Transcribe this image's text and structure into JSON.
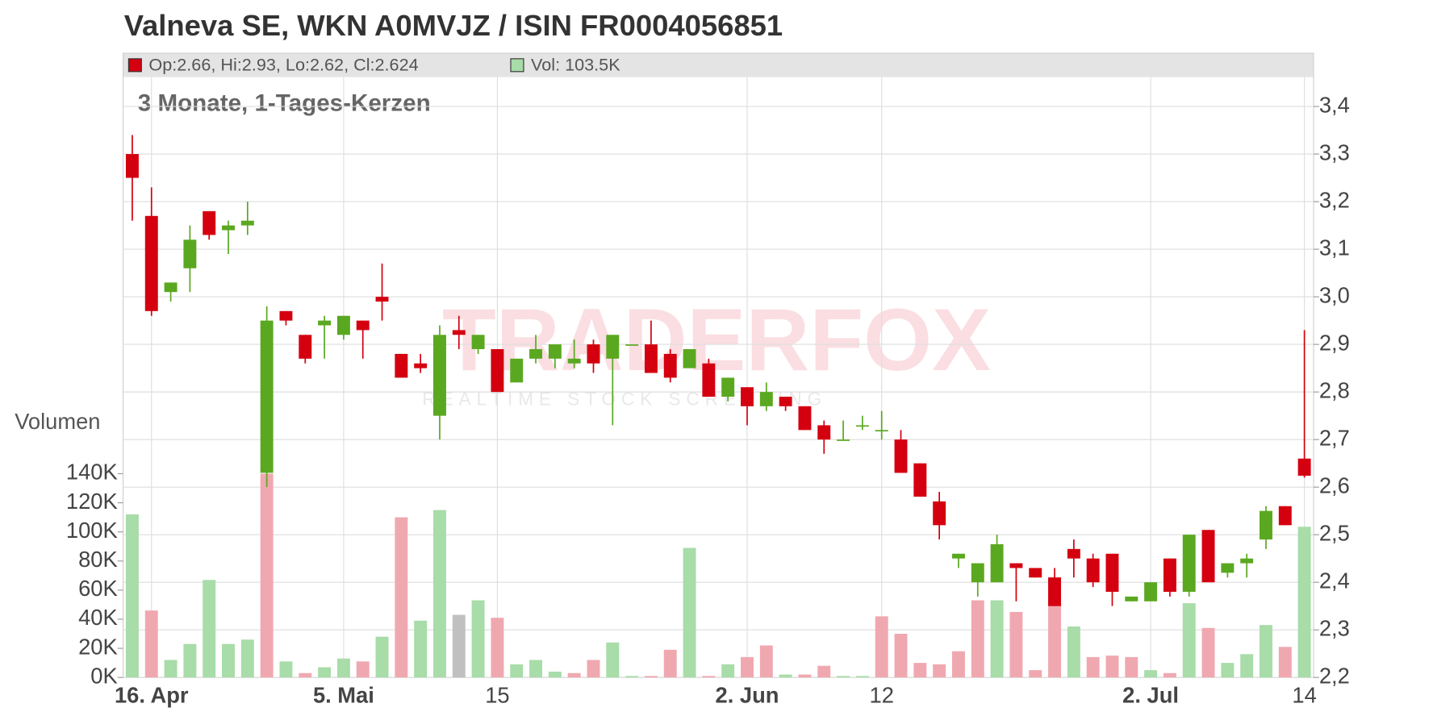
{
  "chart_data": {
    "type": "candlestick",
    "title": "Valneva SE, WKN A0MVJZ / ISIN FR0004056851",
    "subtitle": "3 Monate, 1-Tages-Kerzen",
    "legend": {
      "candle": "Op:2.66, Hi:2.93, Lo:2.62, Cl:2.624",
      "volume": "Vol: 103.5K"
    },
    "volume_axis_label": "Volumen",
    "watermark": {
      "brand": "TRADERFOX",
      "tagline": "REALTIME STOCK SCREENING"
    },
    "categories": [
      null,
      "16. Apr",
      null,
      null,
      null,
      null,
      null,
      null,
      null,
      null,
      null,
      "5. Mai",
      null,
      null,
      null,
      null,
      null,
      null,
      null,
      "15",
      null,
      null,
      null,
      null,
      null,
      null,
      null,
      null,
      null,
      null,
      null,
      null,
      "2. Jun",
      null,
      null,
      null,
      null,
      null,
      null,
      "12",
      null,
      null,
      null,
      null,
      null,
      null,
      null,
      null,
      null,
      null,
      null,
      null,
      null,
      "2. Jul",
      null,
      null,
      null,
      null,
      null,
      null,
      null,
      "14"
    ],
    "open": [
      3.3,
      3.17,
      3.01,
      3.06,
      3.18,
      3.14,
      3.15,
      2.63,
      2.97,
      2.92,
      2.94,
      2.92,
      2.95,
      3.0,
      2.88,
      2.86,
      2.75,
      2.93,
      2.89,
      2.89,
      2.82,
      2.87,
      2.87,
      2.86,
      2.9,
      2.87,
      2.9,
      2.9,
      2.88,
      2.85,
      2.86,
      2.79,
      2.81,
      2.77,
      2.79,
      2.77,
      2.73,
      2.7,
      2.73,
      2.72,
      2.7,
      2.65,
      2.57,
      2.45,
      2.4,
      2.4,
      2.44,
      2.43,
      2.41,
      2.47,
      2.45,
      2.46,
      2.36,
      2.36,
      2.45,
      2.38,
      2.51,
      2.42,
      2.44,
      2.49,
      2.56,
      2.66
    ],
    "high": [
      3.34,
      3.23,
      3.03,
      3.15,
      3.18,
      3.16,
      3.2,
      2.98,
      2.97,
      2.92,
      2.96,
      2.96,
      2.95,
      3.07,
      2.88,
      2.88,
      2.94,
      2.96,
      2.92,
      2.89,
      2.87,
      2.92,
      2.9,
      2.91,
      2.91,
      2.92,
      2.9,
      2.95,
      2.89,
      2.89,
      2.87,
      2.83,
      2.81,
      2.82,
      2.79,
      2.77,
      2.74,
      2.74,
      2.75,
      2.76,
      2.72,
      2.65,
      2.59,
      2.46,
      2.44,
      2.5,
      2.44,
      2.43,
      2.43,
      2.49,
      2.46,
      2.46,
      2.37,
      2.4,
      2.45,
      2.5,
      2.51,
      2.44,
      2.46,
      2.56,
      2.56,
      2.93
    ],
    "low": [
      3.16,
      2.96,
      2.99,
      3.01,
      3.12,
      3.09,
      3.13,
      2.6,
      2.94,
      2.86,
      2.87,
      2.91,
      2.87,
      2.95,
      2.83,
      2.84,
      2.7,
      2.89,
      2.88,
      2.8,
      2.82,
      2.86,
      2.85,
      2.85,
      2.84,
      2.73,
      2.9,
      2.84,
      2.82,
      2.85,
      2.79,
      2.78,
      2.73,
      2.76,
      2.76,
      2.72,
      2.67,
      2.7,
      2.72,
      2.7,
      2.63,
      2.58,
      2.49,
      2.43,
      2.37,
      2.4,
      2.36,
      2.41,
      2.35,
      2.41,
      2.39,
      2.35,
      2.36,
      2.36,
      2.37,
      2.37,
      2.4,
      2.41,
      2.41,
      2.47,
      2.52,
      2.62
    ],
    "close": [
      3.25,
      2.97,
      3.03,
      3.12,
      3.13,
      3.15,
      3.16,
      2.95,
      2.95,
      2.87,
      2.95,
      2.96,
      2.93,
      2.99,
      2.83,
      2.85,
      2.92,
      2.92,
      2.92,
      2.8,
      2.87,
      2.89,
      2.9,
      2.87,
      2.86,
      2.92,
      2.9,
      2.84,
      2.83,
      2.89,
      2.79,
      2.83,
      2.77,
      2.8,
      2.77,
      2.72,
      2.7,
      2.7,
      2.73,
      2.72,
      2.63,
      2.58,
      2.52,
      2.46,
      2.44,
      2.48,
      2.43,
      2.41,
      2.35,
      2.45,
      2.4,
      2.38,
      2.37,
      2.4,
      2.38,
      2.5,
      2.4,
      2.44,
      2.45,
      2.55,
      2.52,
      2.624
    ],
    "volume": [
      112000,
      46000,
      12000,
      23000,
      67000,
      23000,
      26000,
      140000,
      11000,
      3000,
      7000,
      13000,
      11000,
      28000,
      110000,
      39000,
      115000,
      43000,
      53000,
      41000,
      9000,
      12000,
      4000,
      3000,
      12000,
      24000,
      1000,
      1000,
      19000,
      89000,
      1000,
      9000,
      14000,
      22000,
      2000,
      2000,
      8000,
      1000,
      1000,
      42000,
      30000,
      10000,
      9000,
      18000,
      53000,
      53000,
      45000,
      5000,
      69000,
      35000,
      14000,
      15000,
      14000,
      5000,
      3000,
      51000,
      34000,
      10000,
      16000,
      36000,
      21000,
      103500
    ],
    "volume_colors": [
      "#a8dca8",
      "#f0a8b0",
      "#a8dca8",
      "#a8dca8",
      "#a8dca8",
      "#a8dca8",
      "#a8dca8",
      "#f0a8b0",
      "#a8dca8",
      "#f0a8b0",
      "#a8dca8",
      "#a8dca8",
      "#f0a8b0",
      "#a8dca8",
      "#f0a8b0",
      "#a8dca8",
      "#a8dca8",
      "#c0c0c0",
      "#a8dca8",
      "#f0a8b0",
      "#a8dca8",
      "#a8dca8",
      "#a8dca8",
      "#f0a8b0",
      "#f0a8b0",
      "#a8dca8",
      "#a8dca8",
      "#f0a8b0",
      "#f0a8b0",
      "#a8dca8",
      "#f0a8b0",
      "#a8dca8",
      "#f0a8b0",
      "#f0a8b0",
      "#a8dca8",
      "#f0a8b0",
      "#f0a8b0",
      "#a8dca8",
      "#a8dca8",
      "#f0a8b0",
      "#f0a8b0",
      "#f0a8b0",
      "#f0a8b0",
      "#f0a8b0",
      "#f0a8b0",
      "#a8dca8",
      "#f0a8b0",
      "#f0a8b0",
      "#f0a8b0",
      "#a8dca8",
      "#f0a8b0",
      "#f0a8b0",
      "#f0a8b0",
      "#a8dca8",
      "#f0a8b0",
      "#a8dca8",
      "#f0a8b0",
      "#a8dca8",
      "#a8dca8",
      "#a8dca8",
      "#f0a8b0",
      "#a8dca8"
    ],
    "up_color": "#5aa820",
    "down_color": "#d40010",
    "ylim": [
      2.2,
      3.4
    ],
    "yticks": [
      {
        "value": 2.2,
        "label": "2,2"
      },
      {
        "value": 2.3,
        "label": "2,3"
      },
      {
        "value": 2.4,
        "label": "2,4"
      },
      {
        "value": 2.5,
        "label": "2,5"
      },
      {
        "value": 2.6,
        "label": "2,6"
      },
      {
        "value": 2.7,
        "label": "2,7"
      },
      {
        "value": 2.8,
        "label": "2,8"
      },
      {
        "value": 2.9,
        "label": "2,9"
      },
      {
        "value": 3.0,
        "label": "3,0"
      },
      {
        "value": 3.1,
        "label": "3,1"
      },
      {
        "value": 3.2,
        "label": "3,2"
      },
      {
        "value": 3.3,
        "label": "3,3"
      },
      {
        "value": 3.4,
        "label": "3,4"
      }
    ],
    "y2lim": [
      0,
      140000
    ],
    "y2ticks": [
      {
        "value": 0,
        "label": "0K"
      },
      {
        "value": 20000,
        "label": "20K"
      },
      {
        "value": 40000,
        "label": "40K"
      },
      {
        "value": 60000,
        "label": "60K"
      },
      {
        "value": 80000,
        "label": "80K"
      },
      {
        "value": 100000,
        "label": "100K"
      },
      {
        "value": 120000,
        "label": "120K"
      },
      {
        "value": 140000,
        "label": "140K"
      }
    ],
    "grid": true
  }
}
